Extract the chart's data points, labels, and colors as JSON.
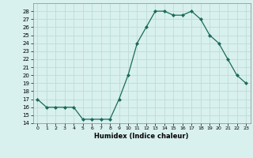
{
  "x": [
    0,
    1,
    2,
    3,
    4,
    5,
    6,
    7,
    8,
    9,
    10,
    11,
    12,
    13,
    14,
    15,
    16,
    17,
    18,
    19,
    20,
    21,
    22,
    23
  ],
  "y": [
    17,
    16,
    16,
    16,
    16,
    14.5,
    14.5,
    14.5,
    14.5,
    17,
    20,
    24,
    26,
    28,
    28,
    27.5,
    27.5,
    28,
    27,
    25,
    24,
    22,
    20,
    19
  ],
  "line_color": "#1a6b5a",
  "marker_color": "#1a6b5a",
  "bg_color": "#d8f0ee",
  "grid_color": "#b8d8d4",
  "xlabel": "Humidex (Indice chaleur)",
  "ylim": [
    14,
    29
  ],
  "yticks": [
    14,
    15,
    16,
    17,
    18,
    19,
    20,
    21,
    22,
    23,
    24,
    25,
    26,
    27,
    28
  ],
  "xticks": [
    0,
    1,
    2,
    3,
    4,
    5,
    6,
    7,
    8,
    9,
    10,
    11,
    12,
    13,
    14,
    15,
    16,
    17,
    18,
    19,
    20,
    21,
    22,
    23
  ],
  "xlim": [
    -0.5,
    23.5
  ]
}
